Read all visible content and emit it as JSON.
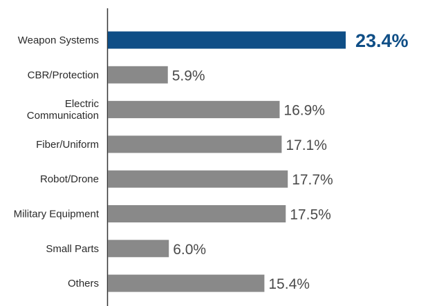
{
  "chart_data": {
    "type": "bar",
    "orientation": "horizontal",
    "categories": [
      [
        "Weapon Systems"
      ],
      [
        "CBR/Protection"
      ],
      [
        "Electric",
        "Communication"
      ],
      [
        "Fiber/Uniform"
      ],
      [
        "Robot/Drone"
      ],
      [
        "Military Equipment"
      ],
      [
        "Small Parts"
      ],
      [
        "Others"
      ]
    ],
    "values": [
      23.4,
      5.9,
      16.9,
      17.1,
      17.7,
      17.5,
      6.0,
      15.4
    ],
    "value_labels": [
      "23.4%",
      "5.9%",
      "16.9%",
      "17.1%",
      "17.7%",
      "17.5%",
      "6.0%",
      "15.4%"
    ],
    "highlight_index": 0,
    "colors": {
      "highlight": "#0f4e86",
      "bar": "#898989",
      "axis": "#333333"
    },
    "grid": false,
    "legend": "none"
  }
}
